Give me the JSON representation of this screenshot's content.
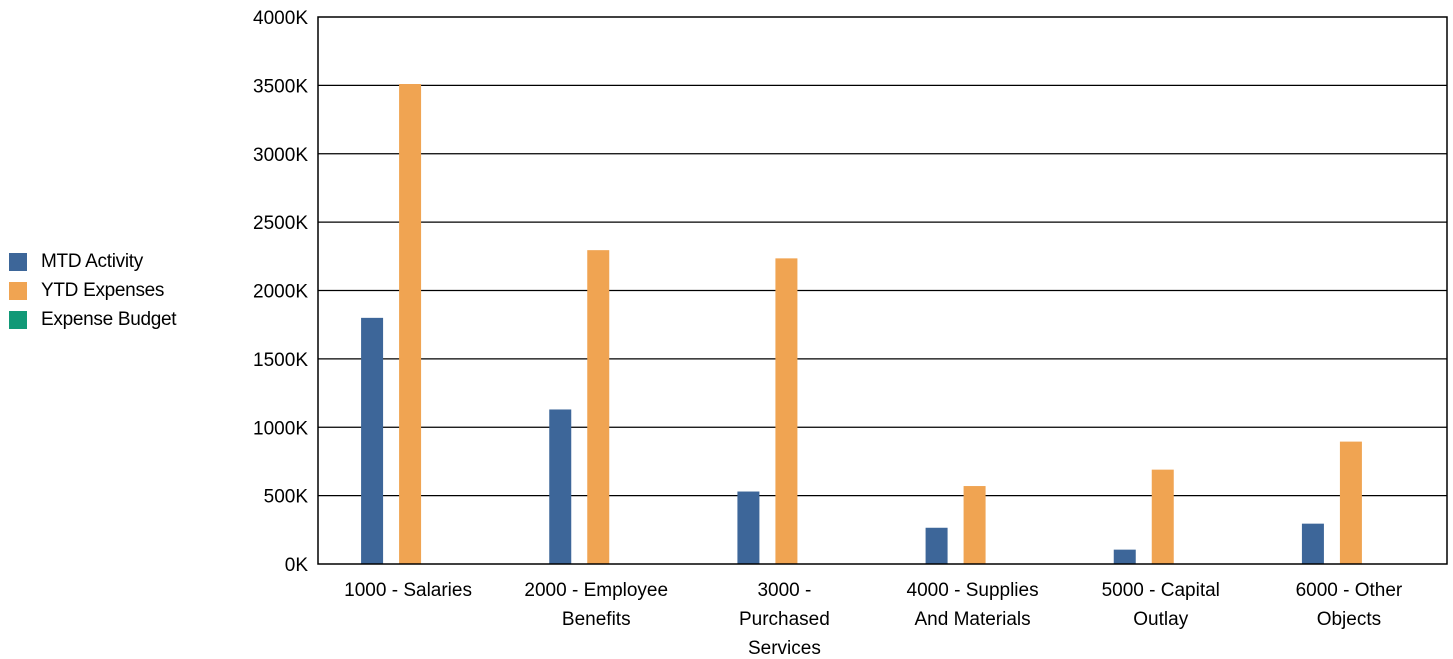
{
  "chart_data": {
    "type": "bar",
    "categories": [
      [
        "1000 - Salaries"
      ],
      [
        "2000 - Employee",
        "Benefits"
      ],
      [
        "3000 -",
        "Purchased",
        "Services"
      ],
      [
        "4000 - Supplies",
        "And Materials"
      ],
      [
        "5000 - Capital",
        "Outlay"
      ],
      [
        "6000 - Other",
        "Objects"
      ]
    ],
    "series": [
      {
        "name": "MTD Activity",
        "color": "#3d6699",
        "values": [
          1800,
          1130,
          530,
          265,
          105,
          295
        ]
      },
      {
        "name": "YTD Expenses",
        "color": "#f0a452",
        "values": [
          3510,
          2295,
          2235,
          570,
          690,
          895
        ]
      },
      {
        "name": "Expense Budget",
        "color": "#119977",
        "values": [
          0,
          0,
          0,
          0,
          0,
          0
        ]
      }
    ],
    "yticks": [
      "0K",
      "500K",
      "1000K",
      "1500K",
      "2000K",
      "2500K",
      "3000K",
      "3500K",
      "4000K"
    ],
    "ylim": [
      0,
      4000
    ],
    "grid": true,
    "legend_position": "left"
  }
}
